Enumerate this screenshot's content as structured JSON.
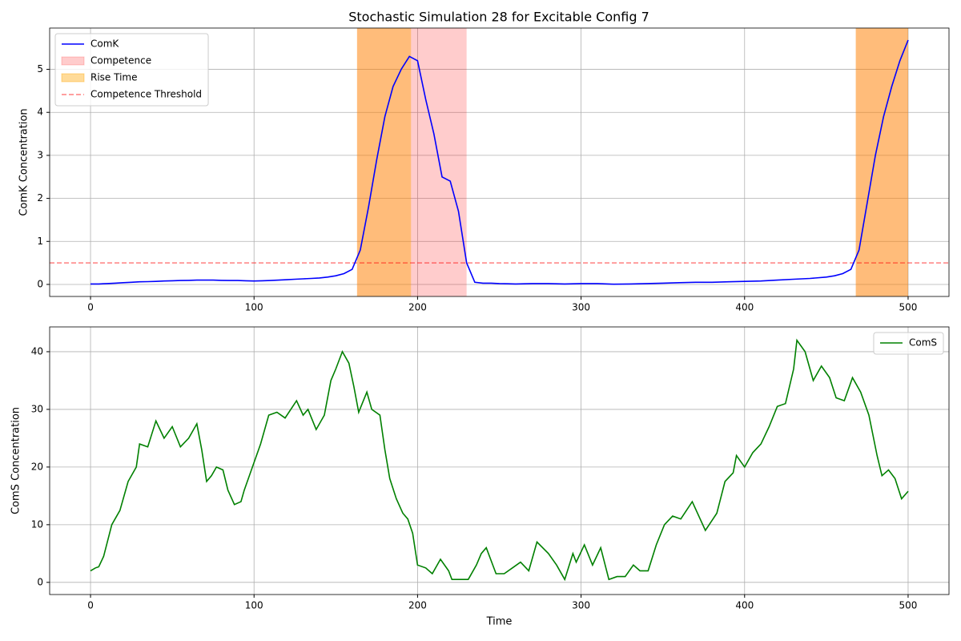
{
  "title": "Stochastic Simulation 28 for Excitable Config 7",
  "chart_data": [
    {
      "type": "line",
      "y_label": "ComK Concentration",
      "x": [
        0,
        5,
        10,
        15,
        20,
        25,
        30,
        35,
        40,
        45,
        50,
        55,
        60,
        65,
        70,
        75,
        80,
        85,
        90,
        95,
        100,
        105,
        110,
        115,
        120,
        125,
        130,
        135,
        140,
        145,
        150,
        155,
        160,
        165,
        170,
        175,
        180,
        185,
        190,
        195,
        200,
        205,
        210,
        215,
        220,
        225,
        230,
        235,
        240,
        245,
        250,
        260,
        270,
        280,
        290,
        300,
        310,
        320,
        330,
        340,
        350,
        360,
        370,
        380,
        390,
        400,
        410,
        420,
        430,
        440,
        450,
        455,
        460,
        465,
        470,
        475,
        480,
        485,
        490,
        495,
        500
      ],
      "series": [
        {
          "name": "ComK",
          "color": "blue",
          "values": [
            0.01,
            0.01,
            0.02,
            0.03,
            0.04,
            0.05,
            0.06,
            0.065,
            0.07,
            0.08,
            0.085,
            0.09,
            0.095,
            0.1,
            0.1,
            0.1,
            0.095,
            0.09,
            0.09,
            0.085,
            0.08,
            0.085,
            0.09,
            0.1,
            0.11,
            0.12,
            0.13,
            0.14,
            0.15,
            0.17,
            0.2,
            0.25,
            0.35,
            0.8,
            1.8,
            2.9,
            3.9,
            4.6,
            5.0,
            5.3,
            5.2,
            4.3,
            3.5,
            2.5,
            2.4,
            1.7,
            0.5,
            0.05,
            0.03,
            0.03,
            0.02,
            0.01,
            0.02,
            0.02,
            0.01,
            0.02,
            0.02,
            0.005,
            0.01,
            0.02,
            0.03,
            0.04,
            0.05,
            0.05,
            0.06,
            0.07,
            0.08,
            0.1,
            0.12,
            0.14,
            0.17,
            0.2,
            0.25,
            0.35,
            0.8,
            1.9,
            3.0,
            3.9,
            4.6,
            5.2,
            5.68
          ]
        }
      ],
      "spans": [
        {
          "name": "Competence",
          "color": "red",
          "alpha": 0.2,
          "ranges": [
            [
              163,
              230
            ],
            [
              468,
              500
            ]
          ]
        },
        {
          "name": "Rise Time",
          "color": "orange",
          "alpha": 0.4,
          "ranges": [
            [
              163,
              196
            ],
            [
              468,
              500
            ]
          ]
        }
      ],
      "threshold": {
        "name": "Competence Threshold",
        "value": 0.5,
        "color": "red"
      },
      "xlim": [
        -25,
        525
      ],
      "xticks": [
        0,
        100,
        200,
        300,
        400,
        500
      ],
      "ylim": [
        -0.28,
        5.96
      ],
      "yticks": [
        0,
        1,
        2,
        3,
        4,
        5
      ],
      "grid": true,
      "legend": "upper left"
    },
    {
      "type": "line",
      "x_label": "Time",
      "y_label": "ComS Concentration",
      "x": [
        0,
        3,
        5,
        8,
        13,
        18,
        23,
        28,
        30,
        35,
        40,
        45,
        50,
        55,
        60,
        65,
        68,
        71,
        74,
        77,
        81,
        84,
        88,
        92,
        94,
        99,
        104,
        109,
        114,
        119,
        126,
        130,
        133,
        138,
        143,
        147,
        150,
        154,
        158,
        161,
        164,
        169,
        172,
        177,
        180,
        183,
        187,
        191,
        194,
        197,
        200,
        205,
        209,
        214,
        219,
        221,
        226,
        231,
        236,
        239,
        242,
        248,
        253,
        258,
        263,
        268,
        273,
        280,
        285,
        290,
        295,
        297,
        302,
        307,
        312,
        317,
        322,
        327,
        332,
        336,
        341,
        346,
        351,
        356,
        361,
        368,
        376,
        383,
        388,
        393,
        395,
        400,
        405,
        410,
        415,
        420,
        425,
        430,
        432,
        437,
        442,
        447,
        452,
        456,
        461,
        466,
        471,
        476,
        481,
        484,
        488,
        492,
        496,
        500
      ],
      "series": [
        {
          "name": "ComS",
          "color": "green",
          "values": [
            2,
            2.5,
            2.7,
            4.5,
            10,
            12.5,
            17.5,
            20,
            24,
            23.5,
            28,
            25,
            27,
            23.5,
            25,
            27.5,
            23,
            17.5,
            18.5,
            20,
            19.5,
            16,
            13.5,
            14,
            16,
            20,
            24,
            29,
            29.5,
            28.5,
            31.5,
            29,
            30,
            26.5,
            29,
            35,
            37,
            40,
            38,
            34,
            29.5,
            33,
            30,
            29,
            23,
            18,
            14.5,
            12,
            11,
            8.5,
            3,
            2.5,
            1.5,
            4,
            2,
            0.5,
            0.5,
            0.5,
            3,
            5,
            6,
            1.5,
            1.5,
            2.5,
            3.5,
            2,
            7,
            5,
            3,
            0.5,
            5,
            3.5,
            6.5,
            3,
            6,
            0.5,
            1,
            1,
            3,
            2,
            2,
            6.5,
            10,
            11.5,
            11,
            14,
            9,
            12,
            17.5,
            19,
            22,
            20,
            22.5,
            24,
            27,
            30.5,
            31,
            37,
            42,
            40,
            35,
            37.5,
            35.5,
            32,
            31.5,
            35.5,
            33,
            29,
            22,
            18.5,
            19.5,
            18,
            14.5,
            15.8
          ]
        }
      ],
      "xlim": [
        -25,
        525
      ],
      "xticks": [
        0,
        100,
        200,
        300,
        400,
        500
      ],
      "ylim": [
        -2.11,
        44.3
      ],
      "yticks": [
        0,
        10,
        20,
        30,
        40
      ],
      "grid": true,
      "legend": "upper right"
    }
  ]
}
